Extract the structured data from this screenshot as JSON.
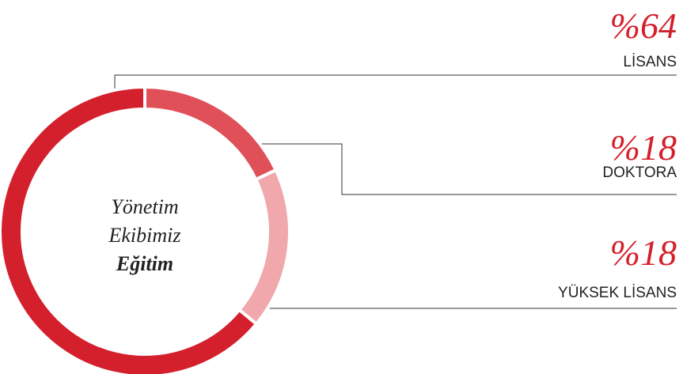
{
  "chart_data": {
    "type": "donut",
    "title_lines": [
      "Yönetim",
      "Ekibimiz",
      "Eğitim"
    ],
    "categories": [
      "LİSANS",
      "DOKTORA",
      "YÜKSEK LİSANS"
    ],
    "values": [
      64,
      18,
      18
    ],
    "value_labels": [
      "%64",
      "%18",
      "%18"
    ],
    "colors": [
      "#d4202c",
      "#e05058",
      "#f0a8ac"
    ]
  }
}
